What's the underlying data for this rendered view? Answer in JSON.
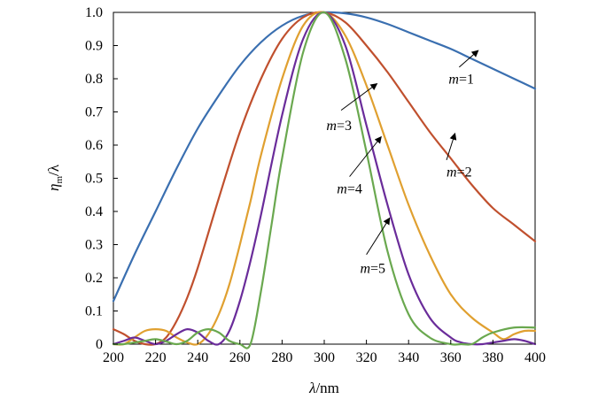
{
  "chart_data": {
    "type": "line",
    "xlabel": "λ/nm",
    "ylabel": "η_m/λ",
    "ylabel_main": "η",
    "ylabel_sub": "m",
    "ylabel_suffix": "/λ",
    "xlim": [
      200,
      400
    ],
    "ylim": [
      0,
      1.0
    ],
    "xticks": [
      "200",
      "220",
      "240",
      "260",
      "280",
      "300",
      "320",
      "340",
      "360",
      "380",
      "400"
    ],
    "yticks": [
      "0",
      "0.1",
      "0.2",
      "0.3",
      "0.4",
      "0.5",
      "0.6",
      "0.7",
      "0.8",
      "0.9",
      "1.0"
    ],
    "grid": false,
    "series": [
      {
        "name": "m=1",
        "color": "#3a6fb0",
        "x": [
          200,
          210,
          220,
          230,
          240,
          250,
          260,
          270,
          280,
          290,
          300,
          310,
          320,
          330,
          340,
          350,
          360,
          370,
          380,
          390,
          400
        ],
        "y": [
          0.13,
          0.27,
          0.4,
          0.53,
          0.65,
          0.75,
          0.84,
          0.91,
          0.96,
          0.99,
          1.0,
          0.997,
          0.985,
          0.965,
          0.94,
          0.915,
          0.89,
          0.86,
          0.83,
          0.8,
          0.77
        ]
      },
      {
        "name": "m=2",
        "color": "#c0502e",
        "x": [
          200,
          205,
          210,
          215,
          220,
          225,
          230,
          235,
          240,
          250,
          260,
          270,
          280,
          290,
          300,
          310,
          320,
          330,
          340,
          350,
          360,
          370,
          380,
          390,
          400
        ],
        "y": [
          0.045,
          0.03,
          0.01,
          0.0,
          0.0,
          0.02,
          0.07,
          0.14,
          0.23,
          0.44,
          0.64,
          0.8,
          0.92,
          0.985,
          1.0,
          0.97,
          0.9,
          0.82,
          0.73,
          0.64,
          0.56,
          0.48,
          0.41,
          0.36,
          0.31
        ]
      },
      {
        "name": "m=3",
        "color": "#e0a030",
        "x": [
          200,
          205,
          210,
          215,
          220,
          225,
          230,
          235,
          240,
          245,
          250,
          255,
          260,
          265,
          270,
          280,
          290,
          300,
          310,
          320,
          330,
          340,
          350,
          360,
          370,
          380,
          385,
          390,
          395,
          400
        ],
        "y": [
          0.0,
          0.0,
          0.02,
          0.04,
          0.045,
          0.04,
          0.02,
          0.005,
          0.0,
          0.03,
          0.09,
          0.18,
          0.3,
          0.43,
          0.57,
          0.8,
          0.96,
          1.0,
          0.93,
          0.78,
          0.6,
          0.42,
          0.27,
          0.15,
          0.08,
          0.035,
          0.015,
          0.03,
          0.04,
          0.04
        ]
      },
      {
        "name": "m=4",
        "color": "#6a2c9a",
        "x": [
          200,
          205,
          210,
          215,
          220,
          225,
          230,
          235,
          240,
          245,
          250,
          255,
          260,
          265,
          270,
          280,
          290,
          300,
          310,
          320,
          330,
          340,
          350,
          360,
          365,
          370,
          375,
          380,
          385,
          390,
          395,
          400
        ],
        "y": [
          0.0,
          0.01,
          0.02,
          0.01,
          0.0,
          0.01,
          0.03,
          0.045,
          0.035,
          0.01,
          0.0,
          0.04,
          0.13,
          0.25,
          0.39,
          0.69,
          0.92,
          1.0,
          0.9,
          0.66,
          0.42,
          0.21,
          0.08,
          0.02,
          0.005,
          0.0,
          0.0,
          0.005,
          0.01,
          0.015,
          0.01,
          0.0
        ]
      },
      {
        "name": "m=5",
        "color": "#6aa84f",
        "x": [
          200,
          205,
          210,
          215,
          220,
          225,
          230,
          235,
          240,
          245,
          250,
          255,
          260,
          265,
          270,
          275,
          280,
          290,
          300,
          310,
          320,
          330,
          340,
          350,
          360,
          365,
          370,
          375,
          380,
          390,
          400
        ],
        "y": [
          0.0,
          0.0,
          0.005,
          0.01,
          0.015,
          0.008,
          0.0,
          0.01,
          0.035,
          0.045,
          0.035,
          0.01,
          0.0,
          0.0,
          0.16,
          0.36,
          0.56,
          0.88,
          1.0,
          0.86,
          0.58,
          0.28,
          0.09,
          0.02,
          0.0,
          0.0,
          0.0,
          0.02,
          0.035,
          0.05,
          0.05
        ]
      }
    ],
    "annotations": [
      {
        "label_italic": "m",
        "label_rest": "=1",
        "text_x": 359,
        "text_y": 0.785,
        "arrow_from": [
          364,
          0.835
        ],
        "arrow_to": [
          373,
          0.885
        ]
      },
      {
        "label_italic": "m",
        "label_rest": "=2",
        "text_x": 358,
        "text_y": 0.505,
        "arrow_from": [
          358,
          0.555
        ],
        "arrow_to": [
          362,
          0.635
        ]
      },
      {
        "label_italic": "m",
        "label_rest": "=3",
        "text_x": 301,
        "text_y": 0.645,
        "arrow_from": [
          308,
          0.705
        ],
        "arrow_to": [
          325,
          0.785
        ]
      },
      {
        "label_italic": "m",
        "label_rest": "=4",
        "text_x": 306,
        "text_y": 0.455,
        "arrow_from": [
          312,
          0.505
        ],
        "arrow_to": [
          327,
          0.625
        ]
      },
      {
        "label_italic": "m",
        "label_rest": "=5",
        "text_x": 317,
        "text_y": 0.215,
        "arrow_from": [
          320,
          0.27
        ],
        "arrow_to": [
          331,
          0.38
        ]
      }
    ]
  }
}
